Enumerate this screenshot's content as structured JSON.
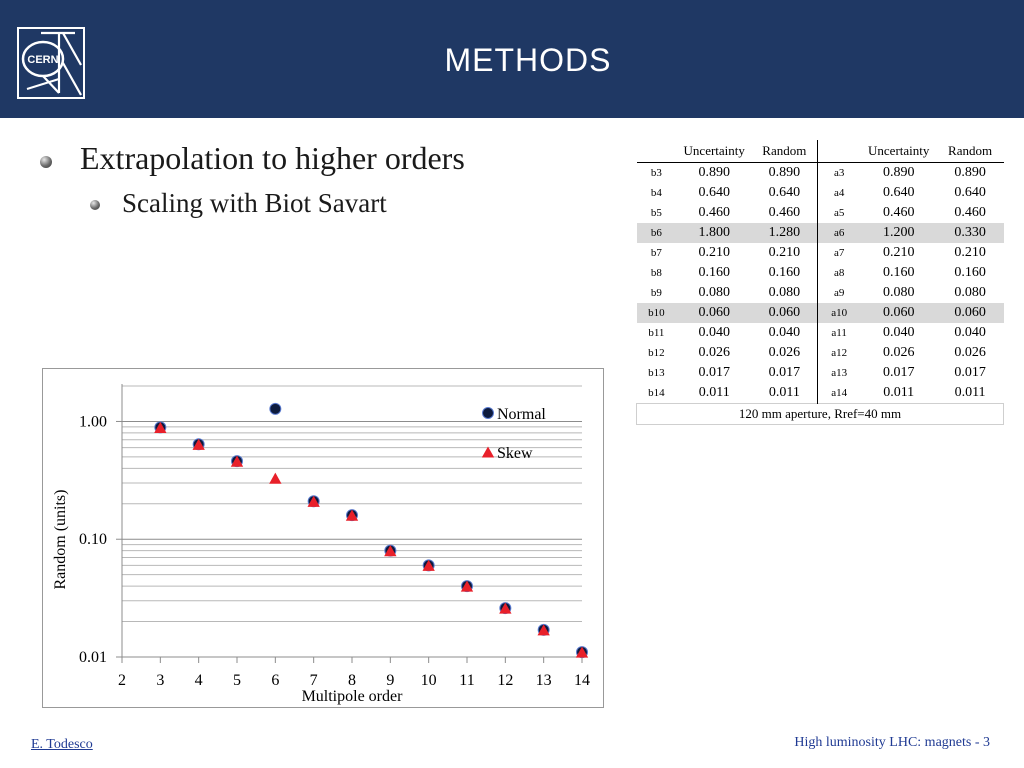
{
  "header": {
    "title": "METHODS",
    "logo_text": "CERN",
    "background_color": "#1f3864"
  },
  "bullets": [
    {
      "text": "Extrapolation to higher orders",
      "level": 1
    },
    {
      "text": "Scaling with Biot Savart",
      "level": 2
    }
  ],
  "table": {
    "headers": [
      "",
      "Uncertainty",
      "Random",
      "",
      "Uncertainty",
      "Random"
    ],
    "rows": [
      {
        "b": "b3",
        "b_unc": "0.890",
        "b_rand": "0.890",
        "a": "a3",
        "a_unc": "0.890",
        "a_rand": "0.890",
        "highlight": false
      },
      {
        "b": "b4",
        "b_unc": "0.640",
        "b_rand": "0.640",
        "a": "a4",
        "a_unc": "0.640",
        "a_rand": "0.640",
        "highlight": false
      },
      {
        "b": "b5",
        "b_unc": "0.460",
        "b_rand": "0.460",
        "a": "a5",
        "a_unc": "0.460",
        "a_rand": "0.460",
        "highlight": false
      },
      {
        "b": "b6",
        "b_unc": "1.800",
        "b_rand": "1.280",
        "a": "a6",
        "a_unc": "1.200",
        "a_rand": "0.330",
        "highlight": true
      },
      {
        "b": "b7",
        "b_unc": "0.210",
        "b_rand": "0.210",
        "a": "a7",
        "a_unc": "0.210",
        "a_rand": "0.210",
        "highlight": false
      },
      {
        "b": "b8",
        "b_unc": "0.160",
        "b_rand": "0.160",
        "a": "a8",
        "a_unc": "0.160",
        "a_rand": "0.160",
        "highlight": false
      },
      {
        "b": "b9",
        "b_unc": "0.080",
        "b_rand": "0.080",
        "a": "a9",
        "a_unc": "0.080",
        "a_rand": "0.080",
        "highlight": false
      },
      {
        "b": "b10",
        "b_unc": "0.060",
        "b_rand": "0.060",
        "a": "a10",
        "a_unc": "0.060",
        "a_rand": "0.060",
        "highlight": true
      },
      {
        "b": "b11",
        "b_unc": "0.040",
        "b_rand": "0.040",
        "a": "a11",
        "a_unc": "0.040",
        "a_rand": "0.040",
        "highlight": false
      },
      {
        "b": "b12",
        "b_unc": "0.026",
        "b_rand": "0.026",
        "a": "a12",
        "a_unc": "0.026",
        "a_rand": "0.026",
        "highlight": false
      },
      {
        "b": "b13",
        "b_unc": "0.017",
        "b_rand": "0.017",
        "a": "a13",
        "a_unc": "0.017",
        "a_rand": "0.017",
        "highlight": false
      },
      {
        "b": "b14",
        "b_unc": "0.011",
        "b_rand": "0.011",
        "a": "a14",
        "a_unc": "0.011",
        "a_rand": "0.011",
        "highlight": false
      }
    ],
    "footer": "120 mm aperture, Rref=40 mm",
    "highlight_color": "#d9d9d9"
  },
  "chart_data": {
    "type": "scatter",
    "title": "",
    "xlabel": "Multipole order",
    "ylabel": "Random (units)",
    "yscale": "log",
    "xlim": [
      2,
      14
    ],
    "ylim": [
      0.01,
      2
    ],
    "x_ticks": [
      "2",
      "3",
      "4",
      "5",
      "6",
      "7",
      "8",
      "9",
      "10",
      "11",
      "12",
      "13",
      "14"
    ],
    "y_ticks": [
      {
        "value": 1.0,
        "label": "1.00"
      },
      {
        "value": 0.1,
        "label": "0.10"
      },
      {
        "value": 0.01,
        "label": "0.01"
      }
    ],
    "grid": "horizontal",
    "legend": "top-right",
    "series": [
      {
        "name": "Normal",
        "marker": "circle",
        "color": "#0d1b3e",
        "x": [
          3,
          4,
          5,
          6,
          7,
          8,
          9,
          10,
          11,
          12,
          13,
          14
        ],
        "y": [
          0.89,
          0.64,
          0.46,
          1.28,
          0.21,
          0.16,
          0.08,
          0.06,
          0.04,
          0.026,
          0.017,
          0.011
        ]
      },
      {
        "name": "Skew",
        "marker": "triangle",
        "color": "#e8202a",
        "x": [
          3,
          4,
          5,
          6,
          7,
          8,
          9,
          10,
          11,
          12,
          13,
          14
        ],
        "y": [
          0.89,
          0.64,
          0.46,
          0.33,
          0.21,
          0.16,
          0.08,
          0.06,
          0.04,
          0.026,
          0.017,
          0.011
        ]
      }
    ]
  },
  "footer": {
    "author": "E. Todesco",
    "right_text": "High luminosity LHC: magnets - 3"
  }
}
